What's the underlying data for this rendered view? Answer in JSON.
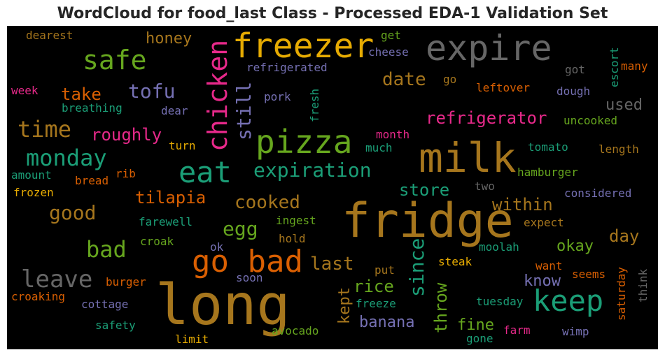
{
  "chart_data": {
    "type": "wordcloud",
    "title": "WordCloud for food_last Class - Processed EDA-1 Validation Set",
    "background": "#000000",
    "colormap": "Dark2",
    "words": [
      {
        "text": "long",
        "color": "#a6761d",
        "orientation": "horizontal"
      },
      {
        "text": "fridge",
        "color": "#a6761d",
        "orientation": "horizontal"
      },
      {
        "text": "milk",
        "color": "#a6761d",
        "orientation": "horizontal"
      },
      {
        "text": "expire",
        "color": "#666666",
        "orientation": "horizontal"
      },
      {
        "text": "freezer",
        "color": "#e6ab02",
        "orientation": "horizontal"
      },
      {
        "text": "pizza",
        "color": "#66a61e",
        "orientation": "horizontal"
      },
      {
        "text": "eat",
        "color": "#1b9e77",
        "orientation": "horizontal"
      },
      {
        "text": "keep",
        "color": "#1b9e77",
        "orientation": "horizontal"
      },
      {
        "text": "go bad",
        "color": "#d95f02",
        "orientation": "horizontal"
      },
      {
        "text": "safe",
        "color": "#66a61e",
        "orientation": "horizontal"
      },
      {
        "text": "chicken",
        "color": "#e7298a",
        "orientation": "vertical"
      },
      {
        "text": "leave",
        "color": "#666666",
        "orientation": "horizontal"
      },
      {
        "text": "time",
        "color": "#a6761d",
        "orientation": "horizontal"
      },
      {
        "text": "monday",
        "color": "#1b9e77",
        "orientation": "horizontal"
      },
      {
        "text": "expiration",
        "color": "#1b9e77",
        "orientation": "horizontal"
      },
      {
        "text": "since",
        "color": "#1b9e77",
        "orientation": "vertical"
      },
      {
        "text": "still",
        "color": "#7570b3",
        "orientation": "vertical"
      },
      {
        "text": "bad",
        "color": "#66a61e",
        "orientation": "horizontal"
      },
      {
        "text": "tofu",
        "color": "#7570b3",
        "orientation": "horizontal"
      },
      {
        "text": "refrigerator",
        "color": "#e7298a",
        "orientation": "horizontal"
      },
      {
        "text": "cooked",
        "color": "#a6761d",
        "orientation": "horizontal"
      },
      {
        "text": "last",
        "color": "#a6761d",
        "orientation": "horizontal"
      },
      {
        "text": "date",
        "color": "#a6761d",
        "orientation": "horizontal"
      },
      {
        "text": "good",
        "color": "#a6761d",
        "orientation": "horizontal"
      },
      {
        "text": "egg",
        "color": "#66a61e",
        "orientation": "horizontal"
      },
      {
        "text": "tilapia",
        "color": "#d95f02",
        "orientation": "horizontal"
      },
      {
        "text": "roughly",
        "color": "#e7298a",
        "orientation": "horizontal"
      },
      {
        "text": "within",
        "color": "#a6761d",
        "orientation": "horizontal"
      },
      {
        "text": "throw",
        "color": "#66a61e",
        "orientation": "vertical"
      },
      {
        "text": "store",
        "color": "#1b9e77",
        "orientation": "horizontal"
      },
      {
        "text": "rice",
        "color": "#66a61e",
        "orientation": "horizontal"
      },
      {
        "text": "banana",
        "color": "#7570b3",
        "orientation": "horizontal"
      },
      {
        "text": "take",
        "color": "#d95f02",
        "orientation": "horizontal"
      },
      {
        "text": "honey",
        "color": "#a6761d",
        "orientation": "horizontal"
      },
      {
        "text": "used",
        "color": "#666666",
        "orientation": "horizontal"
      },
      {
        "text": "day",
        "color": "#a6761d",
        "orientation": "horizontal"
      },
      {
        "text": "okay",
        "color": "#66a61e",
        "orientation": "horizontal"
      },
      {
        "text": "fine",
        "color": "#66a61e",
        "orientation": "horizontal"
      },
      {
        "text": "kept",
        "color": "#a6761d",
        "orientation": "vertical"
      },
      {
        "text": "know",
        "color": "#7570b3",
        "orientation": "horizontal"
      },
      {
        "text": "refrigerated",
        "color": "#7570b3",
        "orientation": "horizontal"
      },
      {
        "text": "breathing",
        "color": "#1b9e77",
        "orientation": "horizontal"
      },
      {
        "text": "fresh",
        "color": "#1b9e77",
        "orientation": "vertical"
      },
      {
        "text": "pork",
        "color": "#7570b3",
        "orientation": "horizontal"
      },
      {
        "text": "dear",
        "color": "#7570b3",
        "orientation": "horizontal"
      },
      {
        "text": "turn",
        "color": "#e6ab02",
        "orientation": "horizontal"
      },
      {
        "text": "cheese",
        "color": "#7570b3",
        "orientation": "horizontal"
      },
      {
        "text": "get",
        "color": "#66a61e",
        "orientation": "horizontal"
      },
      {
        "text": "dearest",
        "color": "#a6761d",
        "orientation": "horizontal"
      },
      {
        "text": "week",
        "color": "#e7298a",
        "orientation": "horizontal"
      },
      {
        "text": "go",
        "color": "#a6761d",
        "orientation": "horizontal"
      },
      {
        "text": "leftover",
        "color": "#d95f02",
        "orientation": "horizontal"
      },
      {
        "text": "got",
        "color": "#666666",
        "orientation": "horizontal"
      },
      {
        "text": "dough",
        "color": "#7570b3",
        "orientation": "horizontal"
      },
      {
        "text": "escort",
        "color": "#1b9e77",
        "orientation": "vertical"
      },
      {
        "text": "many",
        "color": "#d95f02",
        "orientation": "horizontal"
      },
      {
        "text": "uncooked",
        "color": "#66a61e",
        "orientation": "horizontal"
      },
      {
        "text": "month",
        "color": "#e7298a",
        "orientation": "horizontal"
      },
      {
        "text": "much",
        "color": "#1b9e77",
        "orientation": "horizontal"
      },
      {
        "text": "tomato",
        "color": "#1b9e77",
        "orientation": "horizontal"
      },
      {
        "text": "length",
        "color": "#a6761d",
        "orientation": "horizontal"
      },
      {
        "text": "amount",
        "color": "#1b9e77",
        "orientation": "horizontal"
      },
      {
        "text": "rib",
        "color": "#d95f02",
        "orientation": "horizontal"
      },
      {
        "text": "bread",
        "color": "#d95f02",
        "orientation": "horizontal"
      },
      {
        "text": "frozen",
        "color": "#e6ab02",
        "orientation": "horizontal"
      },
      {
        "text": "hamburger",
        "color": "#66a61e",
        "orientation": "horizontal"
      },
      {
        "text": "two",
        "color": "#666666",
        "orientation": "horizontal"
      },
      {
        "text": "considered",
        "color": "#7570b3",
        "orientation": "horizontal"
      },
      {
        "text": "farewell",
        "color": "#1b9e77",
        "orientation": "horizontal"
      },
      {
        "text": "ingest",
        "color": "#66a61e",
        "orientation": "horizontal"
      },
      {
        "text": "expect",
        "color": "#a6761d",
        "orientation": "horizontal"
      },
      {
        "text": "croak",
        "color": "#66a61e",
        "orientation": "horizontal"
      },
      {
        "text": "hold",
        "color": "#a6761d",
        "orientation": "horizontal"
      },
      {
        "text": "ok",
        "color": "#7570b3",
        "orientation": "horizontal"
      },
      {
        "text": "moolah",
        "color": "#1b9e77",
        "orientation": "horizontal"
      },
      {
        "text": "steak",
        "color": "#e6ab02",
        "orientation": "horizontal"
      },
      {
        "text": "want",
        "color": "#d95f02",
        "orientation": "horizontal"
      },
      {
        "text": "seems",
        "color": "#d95f02",
        "orientation": "horizontal"
      },
      {
        "text": "saturday",
        "color": "#d95f02",
        "orientation": "vertical"
      },
      {
        "text": "think",
        "color": "#666666",
        "orientation": "vertical"
      },
      {
        "text": "put",
        "color": "#a6761d",
        "orientation": "horizontal"
      },
      {
        "text": "soon",
        "color": "#7570b3",
        "orientation": "horizontal"
      },
      {
        "text": "burger",
        "color": "#d95f02",
        "orientation": "horizontal"
      },
      {
        "text": "croaking",
        "color": "#d95f02",
        "orientation": "horizontal"
      },
      {
        "text": "cottage",
        "color": "#7570b3",
        "orientation": "horizontal"
      },
      {
        "text": "freeze",
        "color": "#1b9e77",
        "orientation": "horizontal"
      },
      {
        "text": "tuesday",
        "color": "#1b9e77",
        "orientation": "horizontal"
      },
      {
        "text": "safety",
        "color": "#1b9e77",
        "orientation": "horizontal"
      },
      {
        "text": "avocado",
        "color": "#66a61e",
        "orientation": "horizontal"
      },
      {
        "text": "farm",
        "color": "#e7298a",
        "orientation": "horizontal"
      },
      {
        "text": "gone",
        "color": "#1b9e77",
        "orientation": "horizontal"
      },
      {
        "text": "wimp",
        "color": "#7570b3",
        "orientation": "horizontal"
      },
      {
        "text": "limit",
        "color": "#e6ab02",
        "orientation": "horizontal"
      }
    ]
  }
}
